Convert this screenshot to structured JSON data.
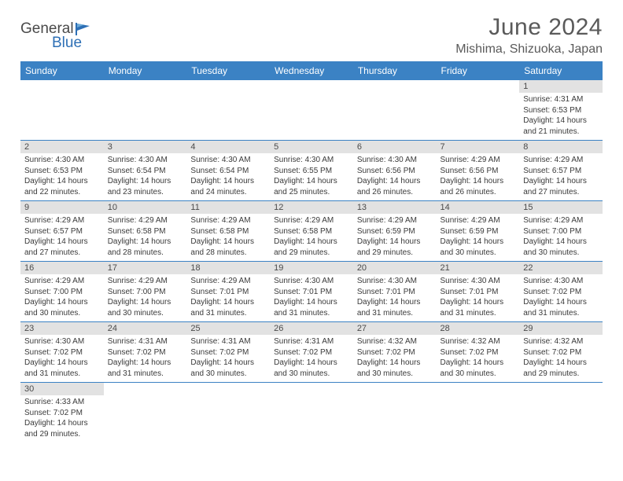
{
  "logo": {
    "general": "General",
    "blue": "Blue"
  },
  "title": "June 2024",
  "location": "Mishima, Shizuoka, Japan",
  "colors": {
    "header_bg": "#3b82c4",
    "header_fg": "#ffffff",
    "daynum_bg": "#e2e2e2",
    "border": "#3b82c4"
  },
  "weekdays": [
    "Sunday",
    "Monday",
    "Tuesday",
    "Wednesday",
    "Thursday",
    "Friday",
    "Saturday"
  ],
  "weeks": [
    [
      null,
      null,
      null,
      null,
      null,
      null,
      {
        "n": "1",
        "sr": "Sunrise: 4:31 AM",
        "ss": "Sunset: 6:53 PM",
        "d1": "Daylight: 14 hours",
        "d2": "and 21 minutes."
      }
    ],
    [
      {
        "n": "2",
        "sr": "Sunrise: 4:30 AM",
        "ss": "Sunset: 6:53 PM",
        "d1": "Daylight: 14 hours",
        "d2": "and 22 minutes."
      },
      {
        "n": "3",
        "sr": "Sunrise: 4:30 AM",
        "ss": "Sunset: 6:54 PM",
        "d1": "Daylight: 14 hours",
        "d2": "and 23 minutes."
      },
      {
        "n": "4",
        "sr": "Sunrise: 4:30 AM",
        "ss": "Sunset: 6:54 PM",
        "d1": "Daylight: 14 hours",
        "d2": "and 24 minutes."
      },
      {
        "n": "5",
        "sr": "Sunrise: 4:30 AM",
        "ss": "Sunset: 6:55 PM",
        "d1": "Daylight: 14 hours",
        "d2": "and 25 minutes."
      },
      {
        "n": "6",
        "sr": "Sunrise: 4:30 AM",
        "ss": "Sunset: 6:56 PM",
        "d1": "Daylight: 14 hours",
        "d2": "and 26 minutes."
      },
      {
        "n": "7",
        "sr": "Sunrise: 4:29 AM",
        "ss": "Sunset: 6:56 PM",
        "d1": "Daylight: 14 hours",
        "d2": "and 26 minutes."
      },
      {
        "n": "8",
        "sr": "Sunrise: 4:29 AM",
        "ss": "Sunset: 6:57 PM",
        "d1": "Daylight: 14 hours",
        "d2": "and 27 minutes."
      }
    ],
    [
      {
        "n": "9",
        "sr": "Sunrise: 4:29 AM",
        "ss": "Sunset: 6:57 PM",
        "d1": "Daylight: 14 hours",
        "d2": "and 27 minutes."
      },
      {
        "n": "10",
        "sr": "Sunrise: 4:29 AM",
        "ss": "Sunset: 6:58 PM",
        "d1": "Daylight: 14 hours",
        "d2": "and 28 minutes."
      },
      {
        "n": "11",
        "sr": "Sunrise: 4:29 AM",
        "ss": "Sunset: 6:58 PM",
        "d1": "Daylight: 14 hours",
        "d2": "and 28 minutes."
      },
      {
        "n": "12",
        "sr": "Sunrise: 4:29 AM",
        "ss": "Sunset: 6:58 PM",
        "d1": "Daylight: 14 hours",
        "d2": "and 29 minutes."
      },
      {
        "n": "13",
        "sr": "Sunrise: 4:29 AM",
        "ss": "Sunset: 6:59 PM",
        "d1": "Daylight: 14 hours",
        "d2": "and 29 minutes."
      },
      {
        "n": "14",
        "sr": "Sunrise: 4:29 AM",
        "ss": "Sunset: 6:59 PM",
        "d1": "Daylight: 14 hours",
        "d2": "and 30 minutes."
      },
      {
        "n": "15",
        "sr": "Sunrise: 4:29 AM",
        "ss": "Sunset: 7:00 PM",
        "d1": "Daylight: 14 hours",
        "d2": "and 30 minutes."
      }
    ],
    [
      {
        "n": "16",
        "sr": "Sunrise: 4:29 AM",
        "ss": "Sunset: 7:00 PM",
        "d1": "Daylight: 14 hours",
        "d2": "and 30 minutes."
      },
      {
        "n": "17",
        "sr": "Sunrise: 4:29 AM",
        "ss": "Sunset: 7:00 PM",
        "d1": "Daylight: 14 hours",
        "d2": "and 30 minutes."
      },
      {
        "n": "18",
        "sr": "Sunrise: 4:29 AM",
        "ss": "Sunset: 7:01 PM",
        "d1": "Daylight: 14 hours",
        "d2": "and 31 minutes."
      },
      {
        "n": "19",
        "sr": "Sunrise: 4:30 AM",
        "ss": "Sunset: 7:01 PM",
        "d1": "Daylight: 14 hours",
        "d2": "and 31 minutes."
      },
      {
        "n": "20",
        "sr": "Sunrise: 4:30 AM",
        "ss": "Sunset: 7:01 PM",
        "d1": "Daylight: 14 hours",
        "d2": "and 31 minutes."
      },
      {
        "n": "21",
        "sr": "Sunrise: 4:30 AM",
        "ss": "Sunset: 7:01 PM",
        "d1": "Daylight: 14 hours",
        "d2": "and 31 minutes."
      },
      {
        "n": "22",
        "sr": "Sunrise: 4:30 AM",
        "ss": "Sunset: 7:02 PM",
        "d1": "Daylight: 14 hours",
        "d2": "and 31 minutes."
      }
    ],
    [
      {
        "n": "23",
        "sr": "Sunrise: 4:30 AM",
        "ss": "Sunset: 7:02 PM",
        "d1": "Daylight: 14 hours",
        "d2": "and 31 minutes."
      },
      {
        "n": "24",
        "sr": "Sunrise: 4:31 AM",
        "ss": "Sunset: 7:02 PM",
        "d1": "Daylight: 14 hours",
        "d2": "and 31 minutes."
      },
      {
        "n": "25",
        "sr": "Sunrise: 4:31 AM",
        "ss": "Sunset: 7:02 PM",
        "d1": "Daylight: 14 hours",
        "d2": "and 30 minutes."
      },
      {
        "n": "26",
        "sr": "Sunrise: 4:31 AM",
        "ss": "Sunset: 7:02 PM",
        "d1": "Daylight: 14 hours",
        "d2": "and 30 minutes."
      },
      {
        "n": "27",
        "sr": "Sunrise: 4:32 AM",
        "ss": "Sunset: 7:02 PM",
        "d1": "Daylight: 14 hours",
        "d2": "and 30 minutes."
      },
      {
        "n": "28",
        "sr": "Sunrise: 4:32 AM",
        "ss": "Sunset: 7:02 PM",
        "d1": "Daylight: 14 hours",
        "d2": "and 30 minutes."
      },
      {
        "n": "29",
        "sr": "Sunrise: 4:32 AM",
        "ss": "Sunset: 7:02 PM",
        "d1": "Daylight: 14 hours",
        "d2": "and 29 minutes."
      }
    ],
    [
      {
        "n": "30",
        "sr": "Sunrise: 4:33 AM",
        "ss": "Sunset: 7:02 PM",
        "d1": "Daylight: 14 hours",
        "d2": "and 29 minutes."
      },
      null,
      null,
      null,
      null,
      null,
      null
    ]
  ]
}
